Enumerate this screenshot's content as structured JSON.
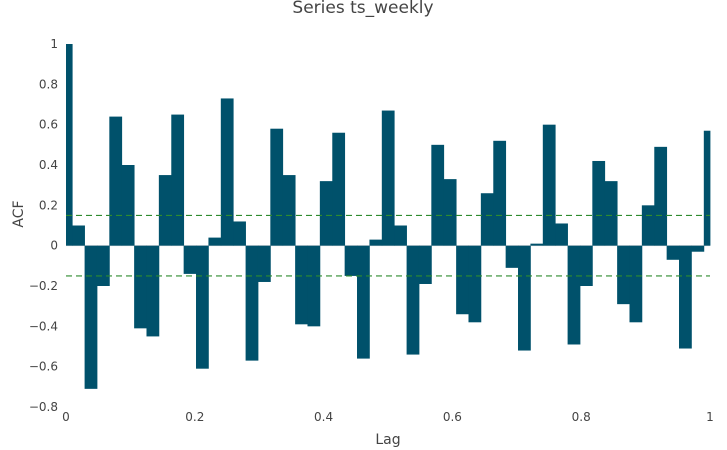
{
  "chart_data": {
    "type": "bar",
    "title": "Series ts_weekly",
    "xlabel": "Lag",
    "ylabel": "ACF",
    "xlim": [
      0,
      1
    ],
    "ylim": [
      -0.8,
      1
    ],
    "bar_color": "#00516b",
    "ci_color": "#2e8b2e",
    "ci": [
      0.15,
      -0.15
    ],
    "x_ticks": [
      {
        "value": 0,
        "label": "0"
      },
      {
        "value": 0.2,
        "label": "0.2"
      },
      {
        "value": 0.4,
        "label": "0.4"
      },
      {
        "value": 0.6,
        "label": "0.6"
      },
      {
        "value": 0.8,
        "label": "0.8"
      },
      {
        "value": 1,
        "label": "1"
      }
    ],
    "y_ticks": [
      {
        "value": 1,
        "label": "1"
      },
      {
        "value": 0.8,
        "label": "0.8"
      },
      {
        "value": 0.6,
        "label": "0.6"
      },
      {
        "value": 0.4,
        "label": "0.4"
      },
      {
        "value": 0.2,
        "label": "0.2"
      },
      {
        "value": 0,
        "label": "0"
      },
      {
        "value": -0.2,
        "label": "−0.2"
      },
      {
        "value": -0.4,
        "label": "−0.4"
      },
      {
        "value": -0.6,
        "label": "−0.6"
      },
      {
        "value": -0.8,
        "label": "−0.8"
      }
    ],
    "x": [
      0,
      0.0192,
      0.0385,
      0.0577,
      0.0769,
      0.0962,
      0.1154,
      0.1346,
      0.1538,
      0.1731,
      0.1923,
      0.2115,
      0.2308,
      0.25,
      0.2692,
      0.2885,
      0.3077,
      0.3269,
      0.3462,
      0.3654,
      0.3846,
      0.4038,
      0.4231,
      0.4423,
      0.4615,
      0.4808,
      0.5,
      0.5192,
      0.5385,
      0.5577,
      0.5769,
      0.5962,
      0.6154,
      0.6346,
      0.6538,
      0.6731,
      0.6923,
      0.7115,
      0.7308,
      0.75,
      0.7692,
      0.7885,
      0.8077,
      0.8269,
      0.8462,
      0.8654,
      0.8846,
      0.9038,
      0.9231,
      0.9423,
      0.9615,
      0.9808,
      1.0
    ],
    "values": [
      1.0,
      0.1,
      -0.71,
      -0.2,
      0.64,
      0.4,
      -0.41,
      -0.45,
      0.35,
      0.65,
      -0.14,
      -0.61,
      0.04,
      0.73,
      0.12,
      -0.57,
      -0.18,
      0.58,
      0.35,
      -0.39,
      -0.4,
      0.32,
      0.56,
      -0.15,
      -0.56,
      0.03,
      0.67,
      0.1,
      -0.54,
      -0.19,
      0.5,
      0.33,
      -0.34,
      -0.38,
      0.26,
      0.52,
      -0.11,
      -0.52,
      0.01,
      0.6,
      0.11,
      -0.49,
      -0.2,
      0.42,
      0.32,
      -0.29,
      -0.38,
      0.2,
      0.49,
      -0.07,
      -0.51,
      -0.03,
      0.57
    ]
  }
}
